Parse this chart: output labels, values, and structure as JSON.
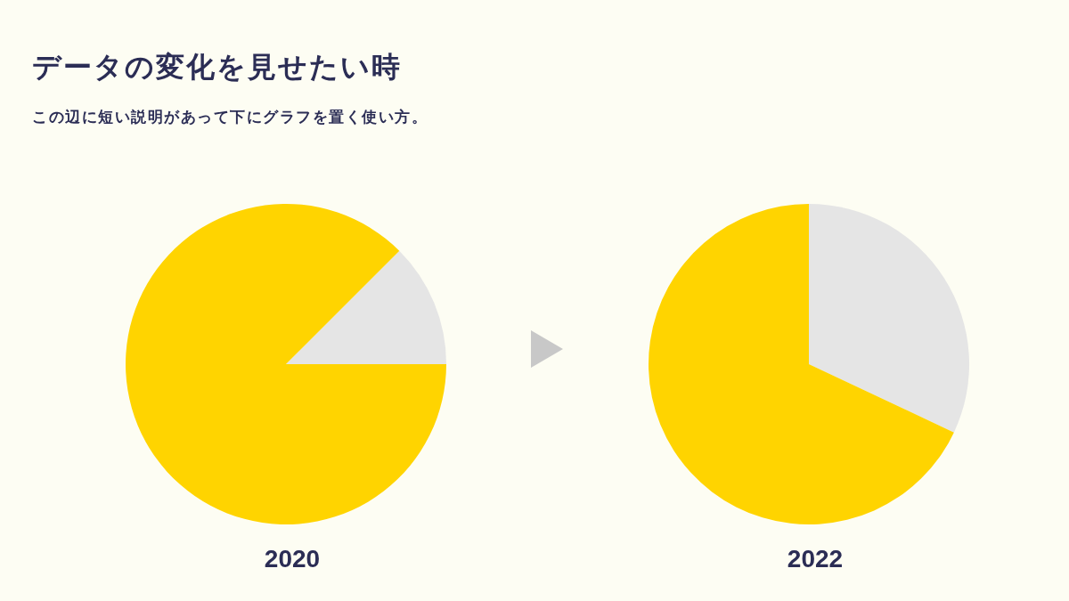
{
  "chart_data": [
    {
      "type": "pie",
      "title": "データの変化を見せたい時",
      "subtitle": "この辺に短い説明があって下にグラフを置く使い方。",
      "xlabel": "2020",
      "categories": [
        null,
        null
      ],
      "values": [
        12.5,
        87.5
      ],
      "colors": [
        "#e5e5e5",
        "#ffd400"
      ]
    },
    {
      "type": "pie",
      "xlabel": "2022",
      "categories": [
        null,
        null
      ],
      "values": [
        32,
        68
      ],
      "colors": [
        "#e5e5e5",
        "#ffd400"
      ]
    }
  ]
}
